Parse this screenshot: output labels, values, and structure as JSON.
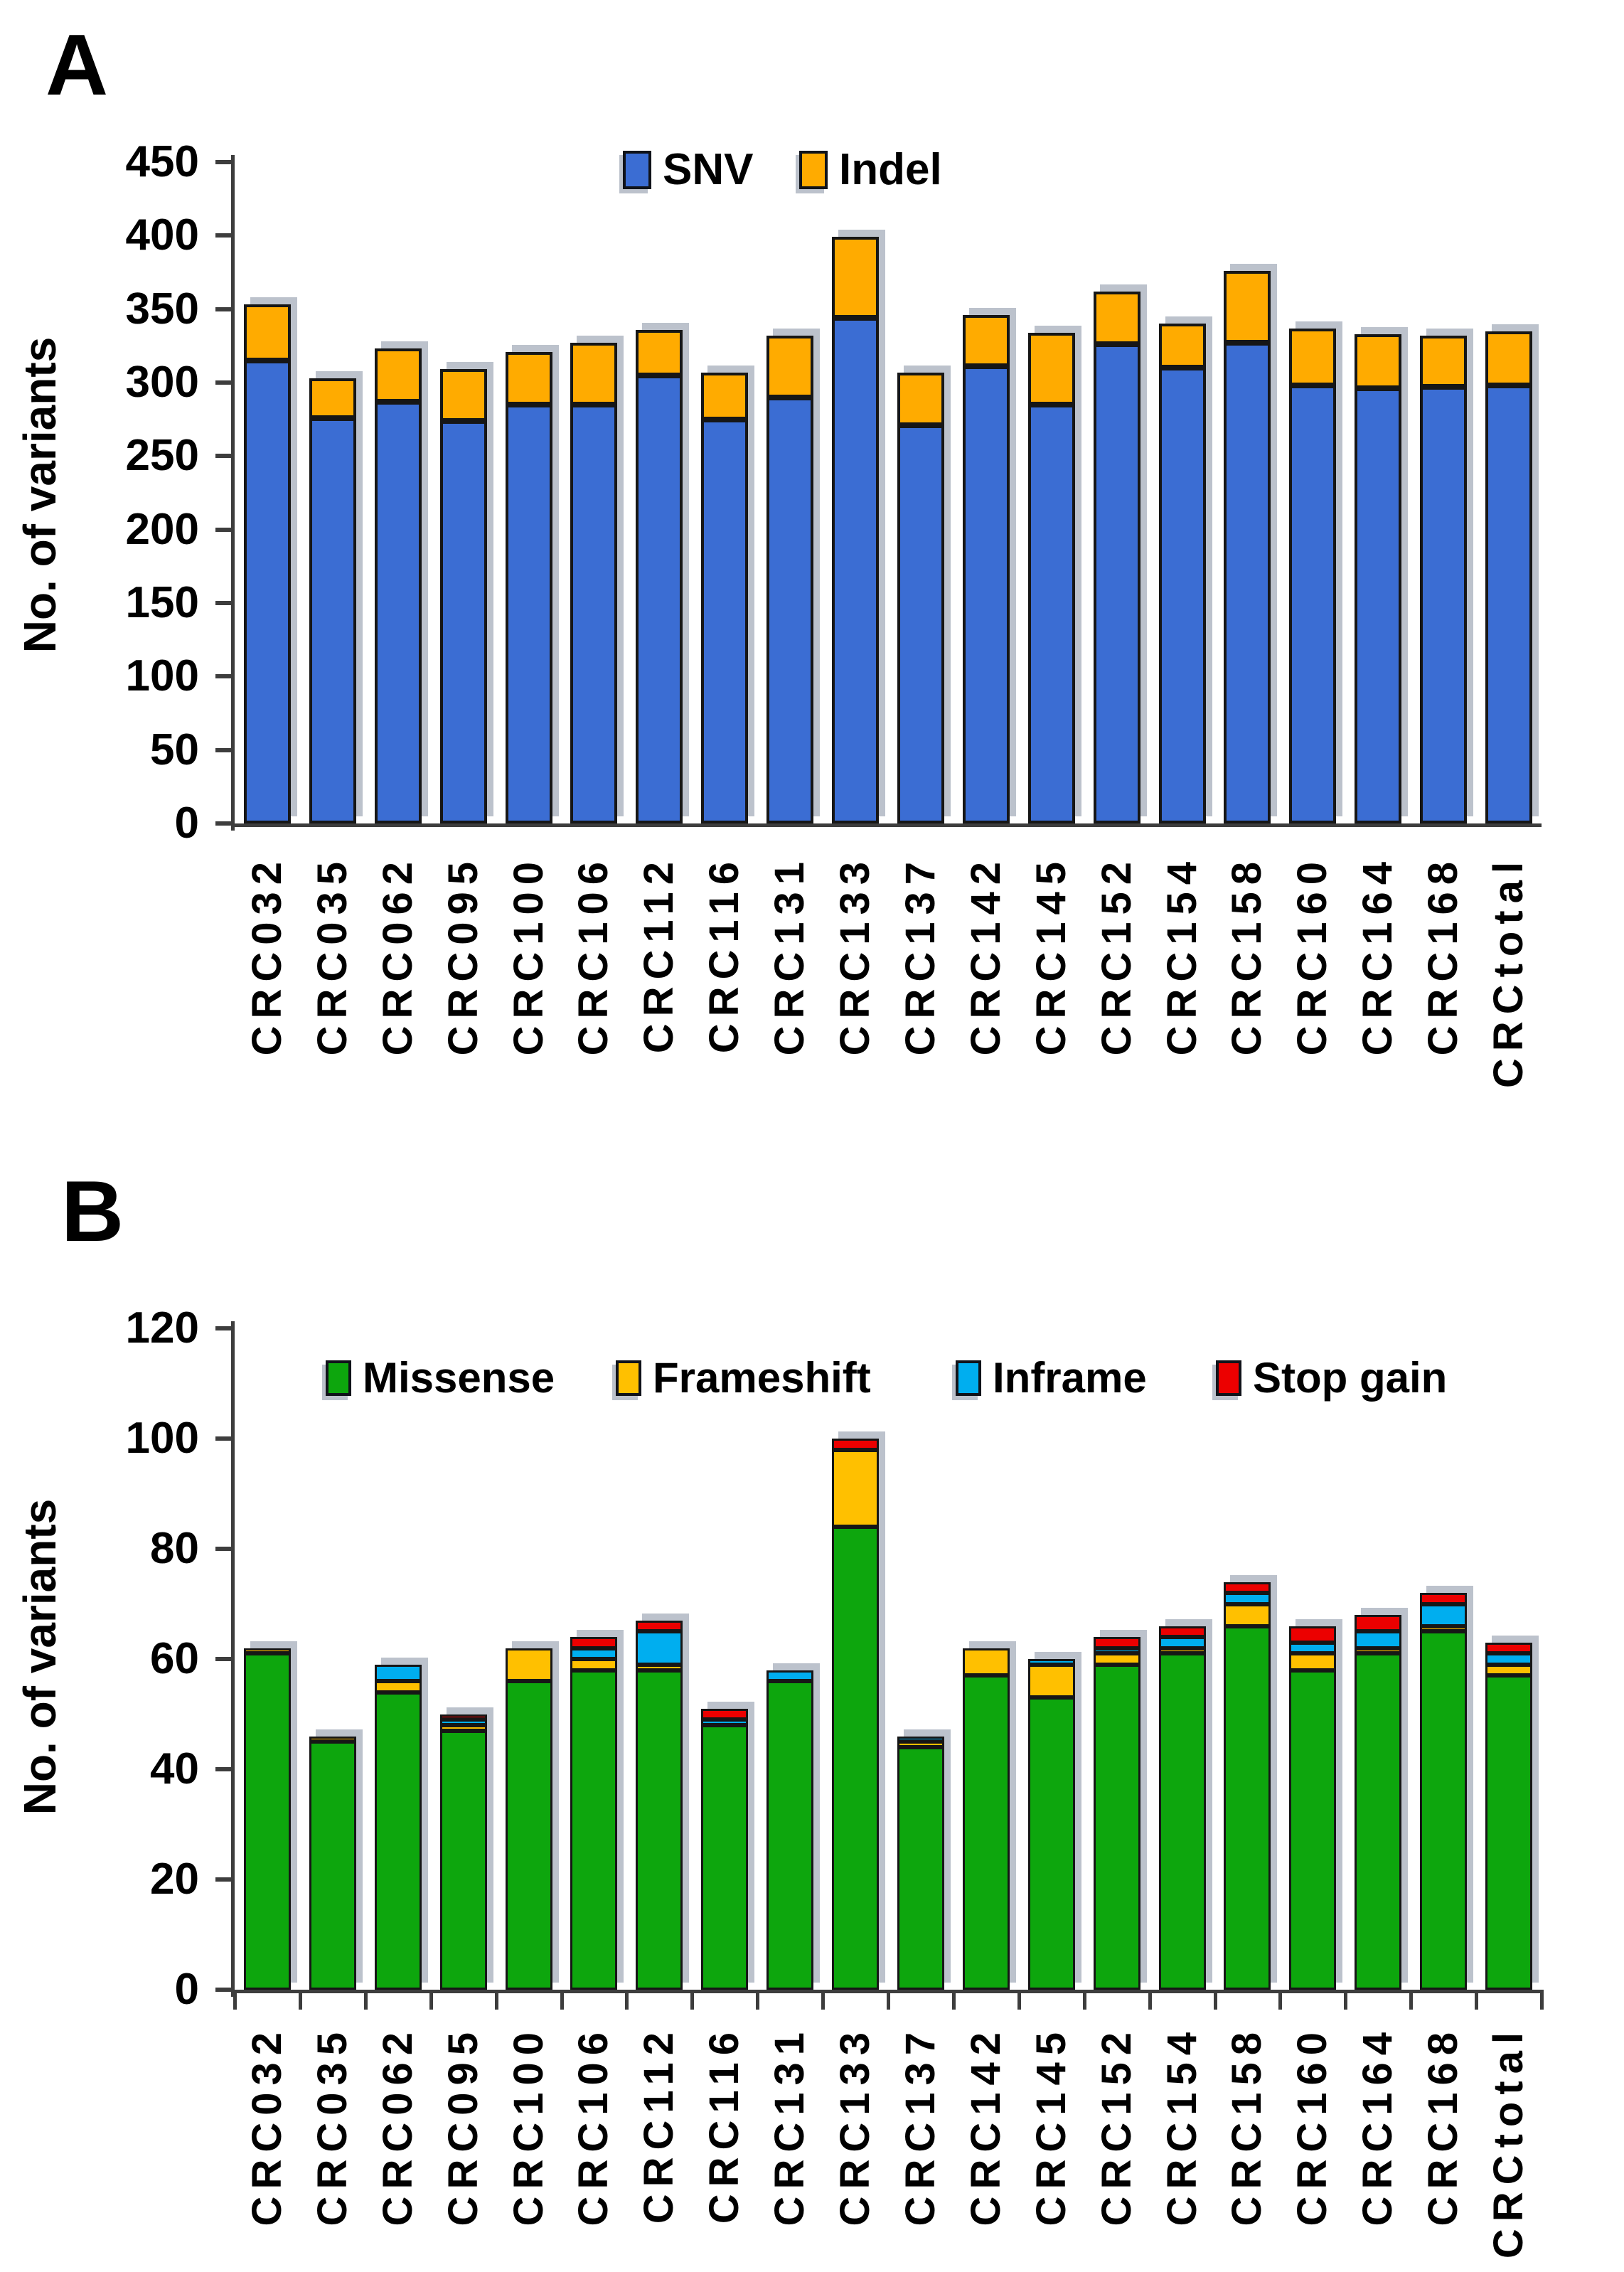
{
  "figure": {
    "background": "#FFFFFF",
    "panels": [
      {
        "label": "A",
        "y_axis_title": "No. of variants"
      },
      {
        "label": "B",
        "y_axis_title": "No. of variants"
      }
    ]
  },
  "chart_data": [
    {
      "type": "bar",
      "stacked": true,
      "panel": "A",
      "title": "",
      "xlabel": "",
      "ylabel": "No. of variants",
      "ylim": [
        0,
        450
      ],
      "ytick_step": 50,
      "grid": false,
      "legend_position": "top-center",
      "categories": [
        "CRC032",
        "CRC035",
        "CRC062",
        "CRC095",
        "CRC100",
        "CRC106",
        "CRC112",
        "CRC116",
        "CRC131",
        "CRC133",
        "CRC137",
        "CRC142",
        "CRC145",
        "CRC152",
        "CRC154",
        "CRC158",
        "CRC160",
        "CRC164",
        "CRC168",
        "CRCtotal"
      ],
      "series": [
        {
          "name": "SNV",
          "color": "#3B6DD3",
          "values": [
            315,
            276,
            287,
            274,
            285,
            285,
            305,
            275,
            290,
            344,
            271,
            311,
            285,
            326,
            310,
            327,
            298,
            296,
            297,
            298
          ]
        },
        {
          "name": "Indel",
          "color": "#FFAB00",
          "values": [
            38,
            27,
            36,
            35,
            36,
            42,
            31,
            32,
            42,
            55,
            36,
            35,
            49,
            36,
            30,
            49,
            39,
            37,
            35,
            37
          ]
        }
      ],
      "totals": [
        353,
        303,
        323,
        309,
        321,
        327,
        336,
        307,
        332,
        399,
        307,
        346,
        334,
        362,
        340,
        376,
        337,
        333,
        332,
        335
      ]
    },
    {
      "type": "bar",
      "stacked": true,
      "panel": "B",
      "title": "",
      "xlabel": "",
      "ylabel": "No. of variants",
      "ylim": [
        0,
        120
      ],
      "ytick_step": 20,
      "grid": false,
      "legend_position": "top-center",
      "categories": [
        "CRC032",
        "CRC035",
        "CRC062",
        "CRC095",
        "CRC100",
        "CRC106",
        "CRC112",
        "CRC116",
        "CRC131",
        "CRC133",
        "CRC137",
        "CRC142",
        "CRC145",
        "CRC152",
        "CRC154",
        "CRC158",
        "CRC160",
        "CRC164",
        "CRC168",
        "CRCtotal"
      ],
      "series": [
        {
          "name": "Missense",
          "color": "#0DA60D",
          "values": [
            61,
            45,
            54,
            47,
            56,
            58,
            58,
            48,
            56,
            84,
            44,
            57,
            53,
            59,
            61,
            66,
            58,
            61,
            65,
            57
          ]
        },
        {
          "name": "Frameshift",
          "color": "#FFC000",
          "values": [
            1,
            1,
            2,
            1,
            6,
            2,
            1,
            0,
            0,
            14,
            1,
            5,
            6,
            2,
            1,
            4,
            3,
            1,
            1,
            2
          ]
        },
        {
          "name": "Inframe",
          "color": "#00AEEF",
          "values": [
            0,
            0,
            3,
            1,
            0,
            2,
            6,
            1,
            2,
            0,
            1,
            0,
            1,
            1,
            2,
            2,
            2,
            3,
            4,
            2
          ]
        },
        {
          "name": "Stop gain",
          "color": "#EC0000",
          "values": [
            0,
            0,
            0,
            1,
            0,
            2,
            2,
            2,
            0,
            2,
            0,
            0,
            0,
            2,
            2,
            2,
            3,
            3,
            2,
            2
          ]
        }
      ],
      "totals": [
        62,
        46,
        59,
        50,
        62,
        64,
        67,
        51,
        58,
        100,
        46,
        62,
        60,
        64,
        66,
        74,
        66,
        68,
        72,
        63
      ]
    }
  ]
}
